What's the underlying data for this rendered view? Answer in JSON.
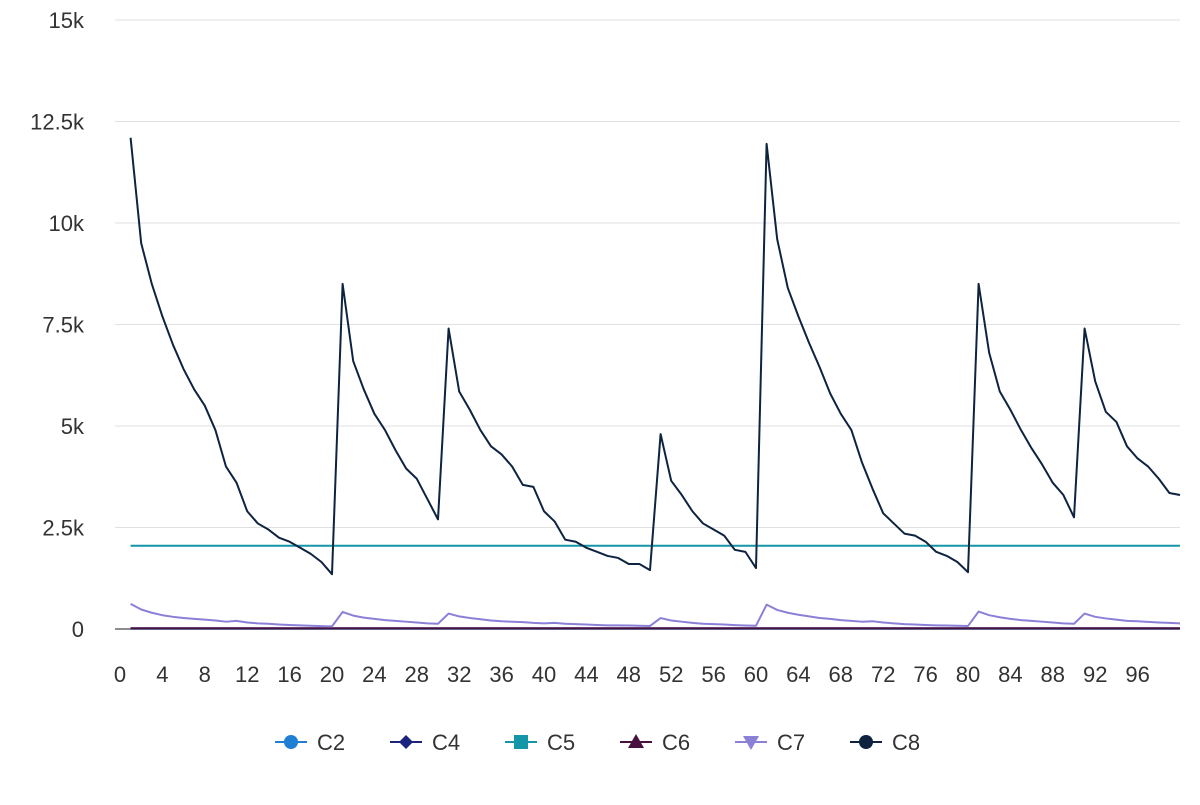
{
  "chart_data": {
    "type": "line",
    "title": "",
    "xlabel": "",
    "ylabel": "",
    "xlim": [
      0,
      100
    ],
    "ylim": [
      0,
      15000
    ],
    "x_ticks": [
      0,
      4,
      8,
      12,
      16,
      20,
      24,
      28,
      32,
      36,
      40,
      44,
      48,
      52,
      56,
      60,
      64,
      68,
      72,
      76,
      80,
      84,
      88,
      92,
      96
    ],
    "y_ticks": [
      0,
      2500,
      5000,
      7500,
      10000,
      12500,
      15000
    ],
    "y_tick_labels": [
      "0",
      "2.5k",
      "5k",
      "7.5k",
      "10k",
      "12.5k",
      "15k"
    ],
    "grid": true,
    "legend_position": "bottom",
    "x": [
      1,
      2,
      3,
      4,
      5,
      6,
      7,
      8,
      9,
      10,
      11,
      12,
      13,
      14,
      15,
      16,
      17,
      18,
      19,
      20,
      21,
      22,
      23,
      24,
      25,
      26,
      27,
      28,
      29,
      30,
      31,
      32,
      33,
      34,
      35,
      36,
      37,
      38,
      39,
      40,
      41,
      42,
      43,
      44,
      45,
      46,
      47,
      48,
      49,
      50,
      51,
      52,
      53,
      54,
      55,
      56,
      57,
      58,
      59,
      60,
      61,
      62,
      63,
      64,
      65,
      66,
      67,
      68,
      69,
      70,
      71,
      72,
      73,
      74,
      75,
      76,
      77,
      78,
      79,
      80,
      81,
      82,
      83,
      84,
      85,
      86,
      87,
      88,
      89,
      90,
      91,
      92,
      93,
      94,
      95,
      96,
      97,
      98,
      99,
      100
    ],
    "series": [
      {
        "name": "C2",
        "color": "#1f7fd4",
        "marker": "circle",
        "values": [
          10,
          10,
          10,
          10,
          10,
          10,
          10,
          10,
          10,
          10,
          10,
          10,
          10,
          10,
          10,
          10,
          10,
          10,
          10,
          10,
          10,
          10,
          10,
          10,
          10,
          10,
          10,
          10,
          10,
          10,
          10,
          10,
          10,
          10,
          10,
          10,
          10,
          10,
          10,
          10,
          10,
          10,
          10,
          10,
          10,
          10,
          10,
          10,
          10,
          10,
          10,
          10,
          10,
          10,
          10,
          10,
          10,
          10,
          10,
          10,
          10,
          10,
          10,
          10,
          10,
          10,
          10,
          10,
          10,
          10,
          10,
          10,
          10,
          10,
          10,
          10,
          10,
          10,
          10,
          10,
          10,
          10,
          10,
          10,
          10,
          10,
          10,
          10,
          10,
          10,
          10,
          10,
          10,
          10,
          10,
          10,
          10,
          10,
          10,
          10
        ]
      },
      {
        "name": "C4",
        "color": "#1a237e",
        "marker": "diamond",
        "values": [
          20,
          20,
          20,
          20,
          20,
          20,
          20,
          20,
          20,
          20,
          20,
          20,
          20,
          20,
          20,
          20,
          20,
          20,
          20,
          20,
          20,
          20,
          20,
          20,
          20,
          20,
          20,
          20,
          20,
          20,
          20,
          20,
          20,
          20,
          20,
          20,
          20,
          20,
          20,
          20,
          20,
          20,
          20,
          20,
          20,
          20,
          20,
          20,
          20,
          20,
          20,
          20,
          20,
          20,
          20,
          20,
          20,
          20,
          20,
          20,
          20,
          20,
          20,
          20,
          20,
          20,
          20,
          20,
          20,
          20,
          20,
          20,
          20,
          20,
          20,
          20,
          20,
          20,
          20,
          20,
          20,
          20,
          20,
          20,
          20,
          20,
          20,
          20,
          20,
          20,
          20,
          20,
          20,
          20,
          20,
          20,
          20,
          20,
          20,
          20
        ]
      },
      {
        "name": "C5",
        "color": "#1396a8",
        "marker": "square",
        "values": [
          2050,
          2050,
          2050,
          2050,
          2050,
          2050,
          2050,
          2050,
          2050,
          2050,
          2050,
          2050,
          2050,
          2050,
          2050,
          2050,
          2050,
          2050,
          2050,
          2050,
          2050,
          2050,
          2050,
          2050,
          2050,
          2050,
          2050,
          2050,
          2050,
          2050,
          2050,
          2050,
          2050,
          2050,
          2050,
          2050,
          2050,
          2050,
          2050,
          2050,
          2050,
          2050,
          2050,
          2050,
          2050,
          2050,
          2050,
          2050,
          2050,
          2050,
          2050,
          2050,
          2050,
          2050,
          2050,
          2050,
          2050,
          2050,
          2050,
          2050,
          2050,
          2050,
          2050,
          2050,
          2050,
          2050,
          2050,
          2050,
          2050,
          2050,
          2050,
          2050,
          2050,
          2050,
          2050,
          2050,
          2050,
          2050,
          2050,
          2050,
          2050,
          2050,
          2050,
          2050,
          2050,
          2050,
          2050,
          2050,
          2050,
          2050,
          2050,
          2050,
          2050,
          2050,
          2050,
          2050,
          2050,
          2050,
          2050,
          2050
        ]
      },
      {
        "name": "C6",
        "color": "#4a1040",
        "marker": "triangle-up",
        "values": [
          15,
          15,
          15,
          15,
          15,
          15,
          15,
          15,
          15,
          15,
          15,
          15,
          15,
          15,
          15,
          15,
          15,
          15,
          15,
          15,
          15,
          15,
          15,
          15,
          15,
          15,
          15,
          15,
          15,
          15,
          15,
          15,
          15,
          15,
          15,
          15,
          15,
          15,
          15,
          15,
          15,
          15,
          15,
          15,
          15,
          15,
          15,
          15,
          15,
          15,
          15,
          15,
          15,
          15,
          15,
          15,
          15,
          15,
          15,
          15,
          15,
          15,
          15,
          15,
          15,
          15,
          15,
          15,
          15,
          15,
          15,
          15,
          15,
          15,
          15,
          15,
          15,
          15,
          15,
          15,
          15,
          15,
          15,
          15,
          15,
          15,
          15,
          15,
          15,
          15,
          15,
          15,
          15,
          15,
          15,
          15,
          15,
          15,
          15,
          15
        ]
      },
      {
        "name": "C7",
        "color": "#8b80d8",
        "marker": "triangle-down",
        "values": [
          620,
          480,
          400,
          340,
          300,
          270,
          250,
          230,
          210,
          180,
          200,
          160,
          140,
          130,
          110,
          100,
          90,
          80,
          70,
          65,
          420,
          330,
          280,
          250,
          220,
          200,
          180,
          160,
          140,
          130,
          380,
          310,
          270,
          240,
          210,
          190,
          180,
          170,
          150,
          140,
          150,
          130,
          120,
          110,
          100,
          90,
          90,
          85,
          80,
          75,
          270,
          210,
          180,
          150,
          130,
          120,
          110,
          95,
          85,
          80,
          600,
          470,
          400,
          350,
          310,
          270,
          250,
          220,
          200,
          180,
          190,
          160,
          140,
          120,
          110,
          100,
          90,
          85,
          80,
          75,
          430,
          340,
          290,
          250,
          220,
          200,
          180,
          160,
          140,
          130,
          380,
          300,
          260,
          230,
          200,
          190,
          175,
          160,
          150,
          140
        ]
      },
      {
        "name": "C8",
        "color": "#0d2340",
        "marker": "circle",
        "values": [
          12100,
          9500,
          8500,
          7700,
          7000,
          6400,
          5900,
          5500,
          4900,
          4000,
          3600,
          2900,
          2600,
          2450,
          2250,
          2150,
          2000,
          1850,
          1650,
          1350,
          8500,
          6600,
          5900,
          5300,
          4900,
          4400,
          3950,
          3700,
          3200,
          2700,
          7400,
          5850,
          5400,
          4900,
          4500,
          4300,
          4000,
          3550,
          3500,
          2900,
          2650,
          2200,
          2150,
          2000,
          1900,
          1800,
          1750,
          1600,
          1600,
          1450,
          4800,
          3650,
          3300,
          2900,
          2600,
          2450,
          2300,
          1950,
          1900,
          1500,
          11950,
          9600,
          8400,
          7700,
          7050,
          6450,
          5800,
          5300,
          4900,
          4100,
          3450,
          2850,
          2600,
          2350,
          2300,
          2150,
          1900,
          1800,
          1650,
          1400,
          8500,
          6800,
          5850,
          5400,
          4900,
          4450,
          4050,
          3600,
          3300,
          2750,
          7400,
          6100,
          5350,
          5100,
          4500,
          4200,
          4000,
          3700,
          3350,
          3300
        ]
      }
    ]
  }
}
